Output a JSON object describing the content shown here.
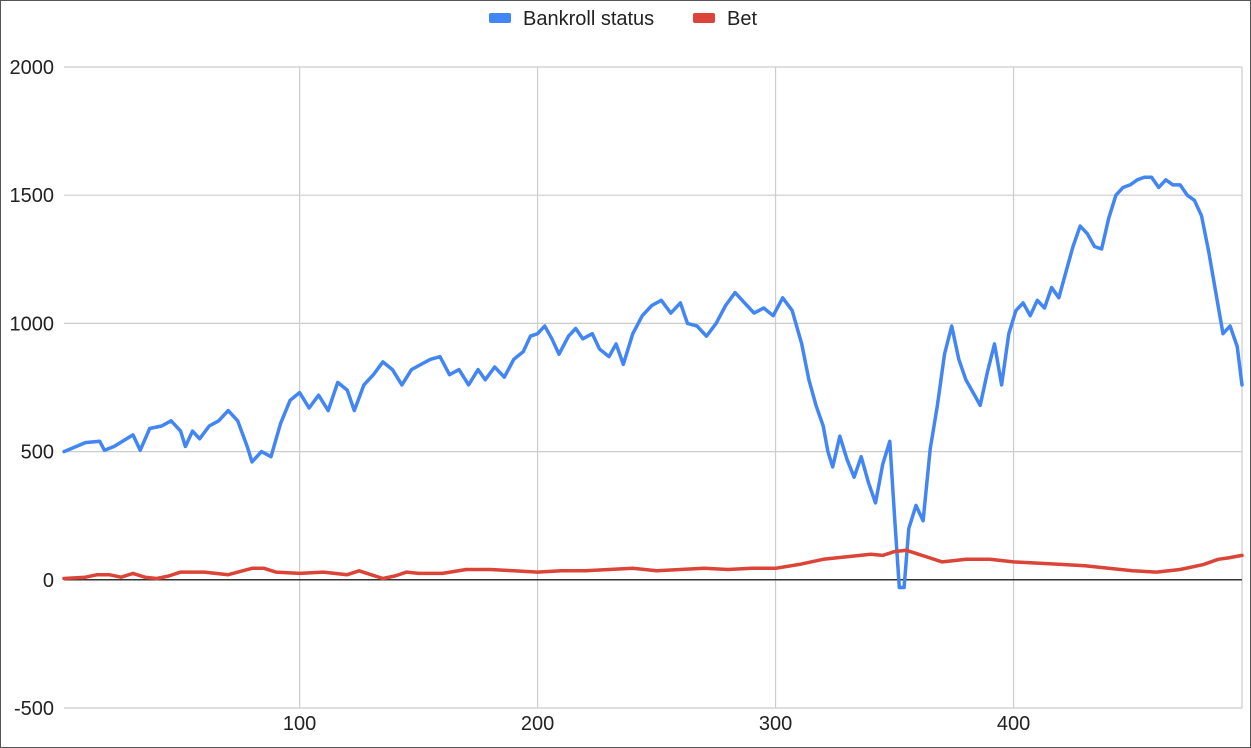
{
  "chart_data": {
    "type": "line",
    "title": "",
    "xlabel": "",
    "ylabel": "",
    "xlim": [
      1,
      496
    ],
    "ylim": [
      -500,
      2000
    ],
    "x_ticks": [
      100,
      200,
      300,
      400
    ],
    "y_ticks": [
      -500,
      0,
      500,
      1000,
      1500,
      2000
    ],
    "grid": true,
    "legend_position": "top-center",
    "series": [
      {
        "name": "Bankroll status",
        "color": "#4285f4",
        "points": [
          [
            1,
            500
          ],
          [
            10,
            535
          ],
          [
            16,
            540
          ],
          [
            18,
            505
          ],
          [
            22,
            520
          ],
          [
            30,
            565
          ],
          [
            33,
            505
          ],
          [
            37,
            590
          ],
          [
            42,
            600
          ],
          [
            46,
            620
          ],
          [
            50,
            580
          ],
          [
            52,
            520
          ],
          [
            55,
            580
          ],
          [
            58,
            550
          ],
          [
            62,
            600
          ],
          [
            66,
            620
          ],
          [
            70,
            660
          ],
          [
            74,
            620
          ],
          [
            78,
            520
          ],
          [
            80,
            460
          ],
          [
            84,
            500
          ],
          [
            88,
            480
          ],
          [
            92,
            610
          ],
          [
            96,
            700
          ],
          [
            100,
            730
          ],
          [
            104,
            670
          ],
          [
            108,
            720
          ],
          [
            112,
            660
          ],
          [
            116,
            770
          ],
          [
            120,
            740
          ],
          [
            123,
            660
          ],
          [
            127,
            760
          ],
          [
            131,
            800
          ],
          [
            135,
            850
          ],
          [
            139,
            820
          ],
          [
            143,
            760
          ],
          [
            147,
            820
          ],
          [
            151,
            840
          ],
          [
            155,
            860
          ],
          [
            159,
            870
          ],
          [
            163,
            800
          ],
          [
            167,
            820
          ],
          [
            171,
            760
          ],
          [
            175,
            820
          ],
          [
            178,
            780
          ],
          [
            182,
            830
          ],
          [
            186,
            790
          ],
          [
            190,
            860
          ],
          [
            194,
            890
          ],
          [
            197,
            950
          ],
          [
            200,
            960
          ],
          [
            203,
            990
          ],
          [
            206,
            940
          ],
          [
            209,
            880
          ],
          [
            213,
            950
          ],
          [
            216,
            980
          ],
          [
            219,
            940
          ],
          [
            223,
            960
          ],
          [
            226,
            900
          ],
          [
            230,
            870
          ],
          [
            233,
            920
          ],
          [
            236,
            840
          ],
          [
            240,
            960
          ],
          [
            244,
            1030
          ],
          [
            248,
            1070
          ],
          [
            252,
            1090
          ],
          [
            256,
            1040
          ],
          [
            260,
            1080
          ],
          [
            263,
            1000
          ],
          [
            267,
            990
          ],
          [
            271,
            950
          ],
          [
            275,
            1000
          ],
          [
            279,
            1070
          ],
          [
            283,
            1120
          ],
          [
            287,
            1080
          ],
          [
            291,
            1040
          ],
          [
            295,
            1060
          ],
          [
            299,
            1030
          ],
          [
            303,
            1100
          ],
          [
            307,
            1050
          ],
          [
            311,
            920
          ],
          [
            314,
            780
          ],
          [
            317,
            680
          ],
          [
            320,
            600
          ],
          [
            322,
            500
          ],
          [
            324,
            440
          ],
          [
            327,
            560
          ],
          [
            330,
            470
          ],
          [
            333,
            400
          ],
          [
            336,
            480
          ],
          [
            339,
            380
          ],
          [
            342,
            300
          ],
          [
            345,
            450
          ],
          [
            348,
            540
          ],
          [
            350,
            250
          ],
          [
            352,
            -30
          ],
          [
            354,
            -30
          ],
          [
            356,
            200
          ],
          [
            359,
            290
          ],
          [
            362,
            230
          ],
          [
            365,
            510
          ],
          [
            368,
            680
          ],
          [
            371,
            880
          ],
          [
            374,
            990
          ],
          [
            377,
            860
          ],
          [
            380,
            780
          ],
          [
            383,
            730
          ],
          [
            386,
            680
          ],
          [
            389,
            810
          ],
          [
            392,
            920
          ],
          [
            395,
            760
          ],
          [
            398,
            960
          ],
          [
            401,
            1050
          ],
          [
            404,
            1080
          ],
          [
            407,
            1030
          ],
          [
            410,
            1090
          ],
          [
            413,
            1060
          ],
          [
            416,
            1140
          ],
          [
            419,
            1100
          ],
          [
            422,
            1200
          ],
          [
            425,
            1300
          ],
          [
            428,
            1380
          ],
          [
            431,
            1350
          ],
          [
            434,
            1300
          ],
          [
            437,
            1290
          ],
          [
            440,
            1410
          ],
          [
            443,
            1500
          ],
          [
            446,
            1530
          ],
          [
            449,
            1540
          ],
          [
            452,
            1560
          ],
          [
            455,
            1570
          ],
          [
            458,
            1570
          ],
          [
            461,
            1530
          ],
          [
            464,
            1560
          ],
          [
            467,
            1540
          ],
          [
            470,
            1540
          ],
          [
            473,
            1500
          ],
          [
            476,
            1480
          ],
          [
            479,
            1420
          ],
          [
            482,
            1280
          ],
          [
            485,
            1120
          ],
          [
            488,
            960
          ],
          [
            491,
            990
          ],
          [
            494,
            910
          ],
          [
            496,
            760
          ]
        ]
      },
      {
        "name": "Bet",
        "color": "#db4437",
        "points": [
          [
            1,
            5
          ],
          [
            10,
            10
          ],
          [
            15,
            20
          ],
          [
            20,
            20
          ],
          [
            25,
            10
          ],
          [
            30,
            25
          ],
          [
            35,
            10
          ],
          [
            40,
            5
          ],
          [
            45,
            15
          ],
          [
            50,
            30
          ],
          [
            60,
            30
          ],
          [
            70,
            20
          ],
          [
            80,
            45
          ],
          [
            85,
            45
          ],
          [
            90,
            30
          ],
          [
            100,
            25
          ],
          [
            110,
            30
          ],
          [
            120,
            20
          ],
          [
            125,
            35
          ],
          [
            130,
            20
          ],
          [
            135,
            5
          ],
          [
            140,
            15
          ],
          [
            145,
            30
          ],
          [
            150,
            25
          ],
          [
            160,
            25
          ],
          [
            170,
            40
          ],
          [
            180,
            40
          ],
          [
            190,
            35
          ],
          [
            200,
            30
          ],
          [
            210,
            35
          ],
          [
            220,
            35
          ],
          [
            230,
            40
          ],
          [
            240,
            45
          ],
          [
            250,
            35
          ],
          [
            260,
            40
          ],
          [
            270,
            45
          ],
          [
            280,
            40
          ],
          [
            290,
            45
          ],
          [
            300,
            45
          ],
          [
            310,
            60
          ],
          [
            320,
            80
          ],
          [
            330,
            90
          ],
          [
            340,
            100
          ],
          [
            345,
            95
          ],
          [
            350,
            110
          ],
          [
            355,
            115
          ],
          [
            360,
            100
          ],
          [
            365,
            85
          ],
          [
            370,
            70
          ],
          [
            375,
            75
          ],
          [
            380,
            80
          ],
          [
            390,
            80
          ],
          [
            400,
            70
          ],
          [
            410,
            65
          ],
          [
            420,
            60
          ],
          [
            430,
            55
          ],
          [
            440,
            45
          ],
          [
            450,
            35
          ],
          [
            460,
            30
          ],
          [
            470,
            40
          ],
          [
            480,
            60
          ],
          [
            486,
            80
          ],
          [
            490,
            85
          ],
          [
            496,
            95
          ]
        ]
      }
    ]
  }
}
